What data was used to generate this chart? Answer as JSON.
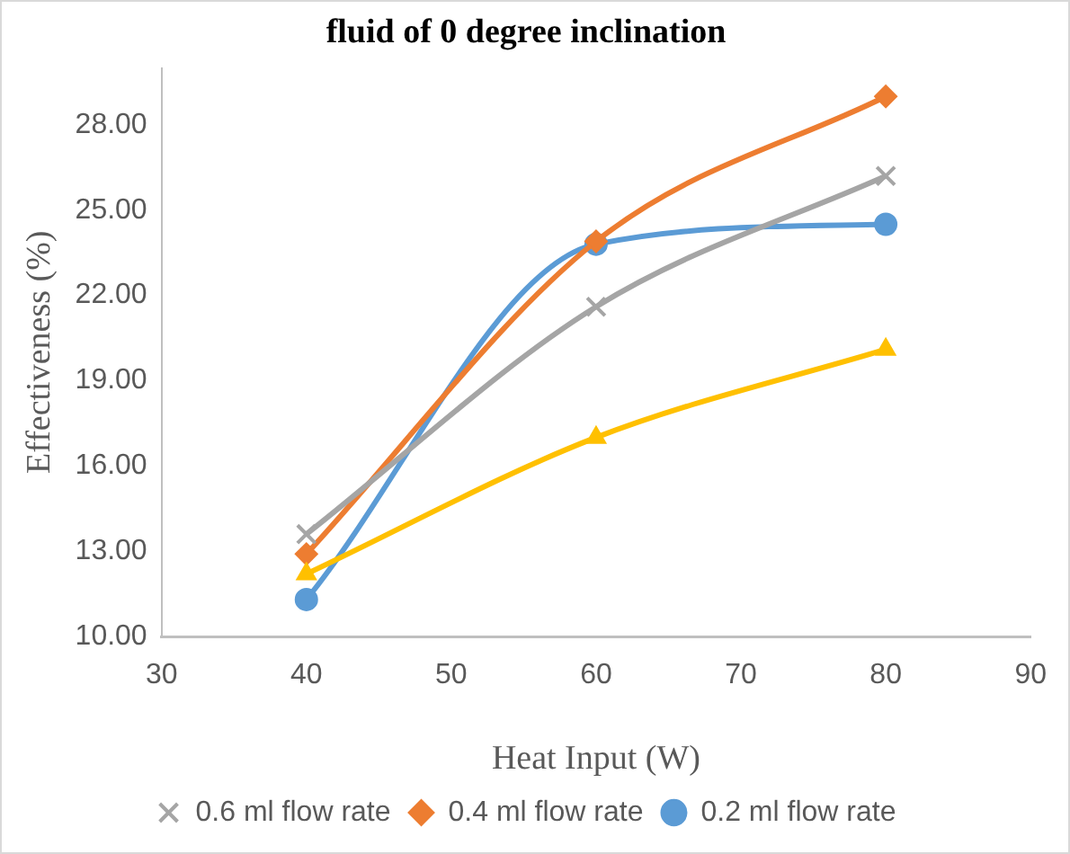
{
  "chart_data": {
    "type": "line",
    "title": "fluid of 0 degree inclination",
    "xlabel": "Heat Input (W)",
    "ylabel": "Effectiveness (%)",
    "x": [
      40,
      60,
      80
    ],
    "series": [
      {
        "name": "0.2 ml flow rate",
        "color": "#5b9bd5",
        "marker": "circle",
        "values": [
          11.3,
          23.8,
          24.5
        ]
      },
      {
        "name": "0.4 ml flow rate",
        "color": "#ed7d31",
        "marker": "diamond",
        "values": [
          12.9,
          23.9,
          29.0
        ]
      },
      {
        "name": "0.6 ml flow rate",
        "color": "#a5a5a5",
        "marker": "cross",
        "values": [
          13.6,
          21.6,
          26.2
        ]
      },
      {
        "color": "#ffc000",
        "marker": "triangle",
        "values": [
          12.2,
          17.0,
          20.1
        ]
      }
    ],
    "xlim": [
      30,
      90
    ],
    "xticks": [
      30,
      40,
      50,
      60,
      70,
      80,
      90
    ],
    "ylim": [
      10,
      30
    ],
    "yticks": [
      {
        "value": 10,
        "label": "10.00"
      },
      {
        "value": 13,
        "label": "13.00"
      },
      {
        "value": 16,
        "label": "16.00"
      },
      {
        "value": 19,
        "label": "19.00"
      },
      {
        "value": 22,
        "label": "22.00"
      },
      {
        "value": 25,
        "label": "25.00"
      },
      {
        "value": 28,
        "label": "28.00"
      }
    ],
    "grid": false,
    "legend": "bottom"
  }
}
